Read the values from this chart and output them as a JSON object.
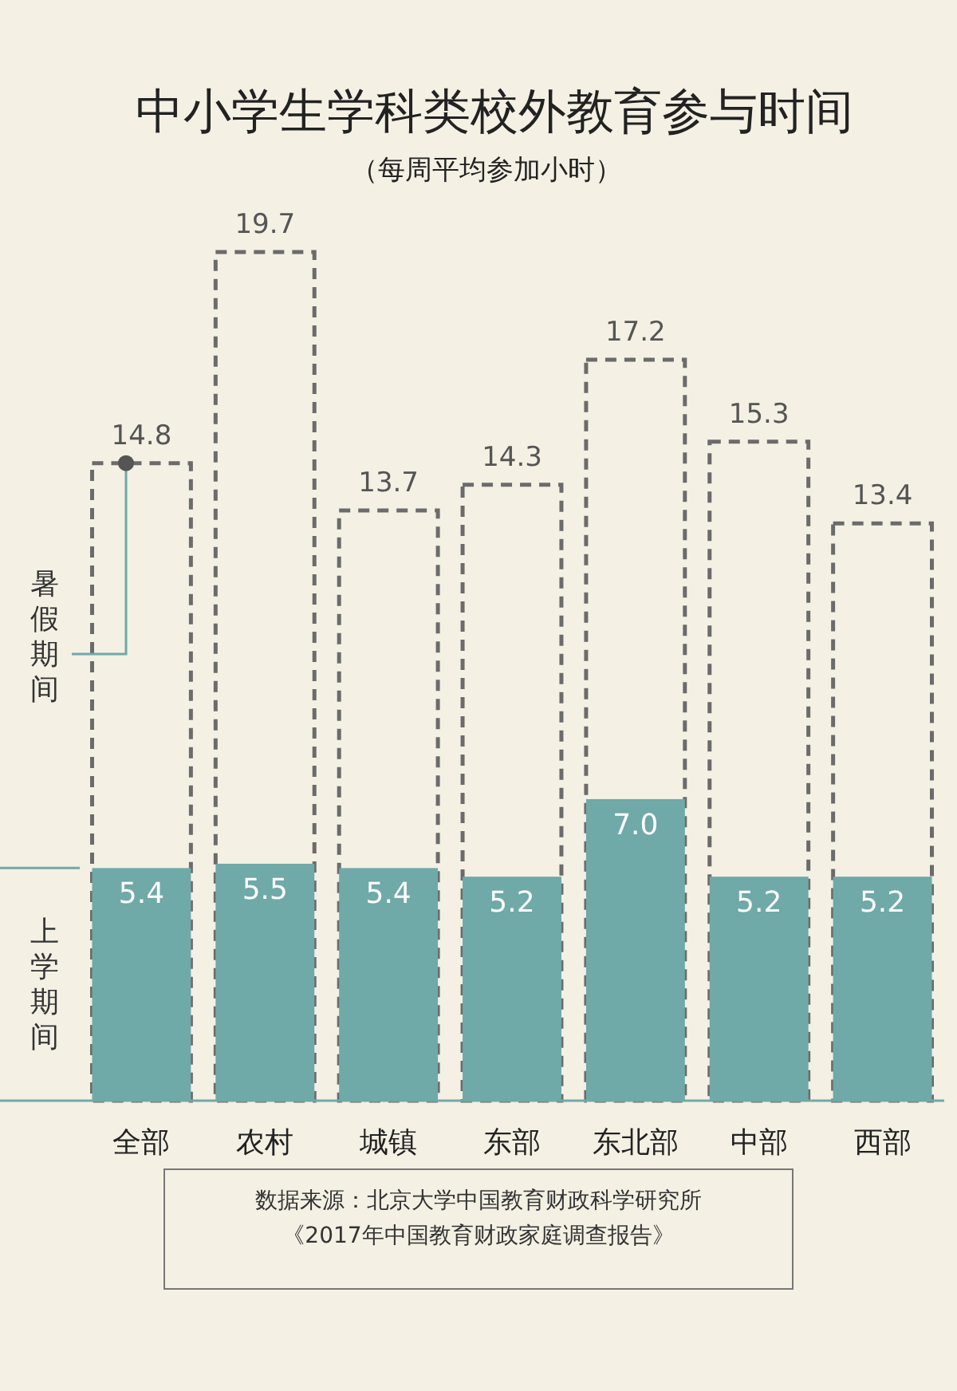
{
  "chart_data": {
    "type": "bar",
    "title": "中小学生学科类校外教育参与时间",
    "subtitle": "（每周平均参加小时）",
    "categories": [
      "全部",
      "农村",
      "城镇",
      "东部",
      "东北部",
      "中部",
      "西部"
    ],
    "series": [
      {
        "name": "暑假期间",
        "color": "#6b6b6b",
        "line_style": "dashed",
        "values": [
          14.8,
          19.7,
          13.7,
          14.3,
          17.2,
          15.3,
          13.4
        ]
      },
      {
        "name": "上学期间",
        "color": "#6fa9a8",
        "values": [
          5.4,
          5.5,
          5.4,
          5.2,
          7.0,
          5.2,
          5.2
        ],
        "value_labels": [
          "5.4",
          "5.5",
          "5.4",
          "5.2",
          "7.0",
          "5.2",
          "5.2"
        ]
      }
    ],
    "data_labels": true,
    "ref_lines": [
      {
        "axis": "y",
        "value": 5.4,
        "color": "#6fa9a8"
      }
    ],
    "annotations": [
      "数据来源：北京大学中国教育财政科学研究所",
      "《2017年中国教育财政家庭调查报告》"
    ]
  }
}
